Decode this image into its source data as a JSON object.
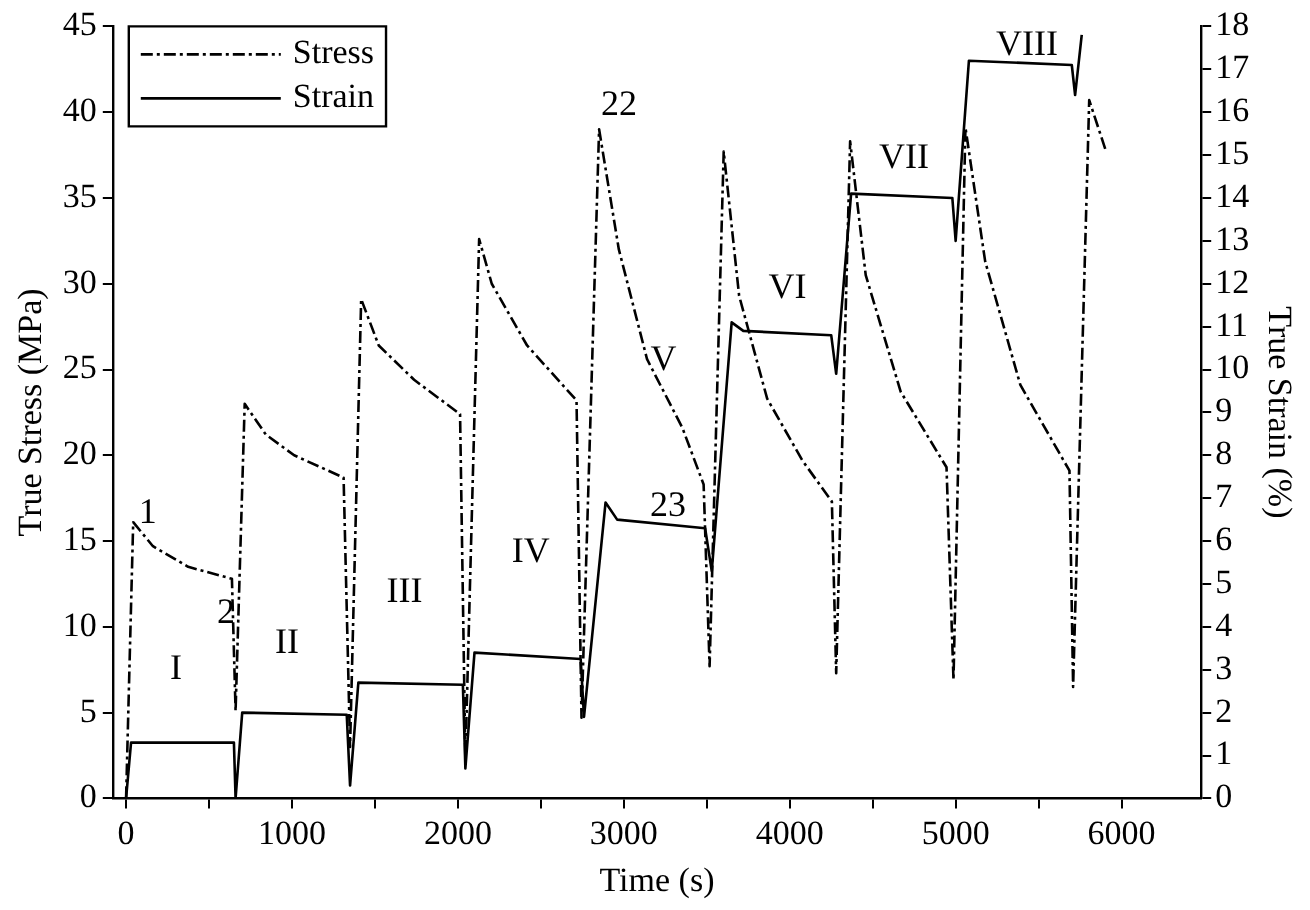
{
  "chart_data": {
    "type": "line",
    "xlabel": "Time (s)",
    "ylabel": "True Stress (MPa)",
    "y2label": "True Strain (%)",
    "xlim": [
      -80,
      6480
    ],
    "xticks": [
      0,
      {
        "value": 500,
        "label": null
      },
      1000,
      {
        "value": 1500,
        "label": null
      },
      2000,
      {
        "value": 2500,
        "label": null
      },
      3000,
      {
        "value": 3500,
        "label": null
      },
      4000,
      {
        "value": 4500,
        "label": null
      },
      5000,
      {
        "value": 5500,
        "label": null
      },
      6000
    ],
    "ylim": [
      0,
      45
    ],
    "yticks": [
      0,
      5,
      10,
      15,
      20,
      25,
      30,
      35,
      40,
      45
    ],
    "y2lim": [
      0,
      18
    ],
    "y2ticks": [
      0,
      1,
      2,
      3,
      4,
      5,
      6,
      7,
      8,
      9,
      10,
      11,
      12,
      13,
      14,
      15,
      16,
      17,
      18
    ],
    "grid": false,
    "legend": "top left",
    "marker": "none",
    "series": [
      {
        "name": "Stress",
        "color": "#000000",
        "line_style": "dashed",
        "x": [
          0,
          43,
          162,
          374,
          638,
          660,
          715,
          843,
          1013,
          1311,
          1350,
          1417,
          1523,
          1736,
          2013,
          2045,
          2128,
          2204,
          2417,
          2715,
          2745,
          2851,
          2970,
          3140,
          3353,
          3481,
          3517,
          3602,
          3695,
          3864,
          4076,
          4254,
          4280,
          4364,
          4458,
          4669,
          4945,
          4987,
          5059,
          5178,
          5390,
          5686,
          5708,
          5805,
          5907
        ],
        "values": [
          0,
          16.1,
          14.7,
          13.5,
          12.8,
          5.1,
          23,
          21.2,
          20,
          18.7,
          3,
          29.1,
          26.4,
          24.4,
          22.4,
          2.3,
          32.6,
          30,
          26.4,
          23.2,
          4.7,
          39,
          32,
          25.6,
          21.6,
          18.3,
          7.7,
          37.7,
          29.3,
          23.3,
          19.7,
          17.3,
          7.3,
          38.3,
          30.5,
          23.7,
          19.3,
          6.9,
          39.1,
          31.3,
          24.1,
          19.1,
          6.5,
          40.7,
          37.7
        ]
      },
      {
        "name": "Strain",
        "color": "#000000",
        "line_style": "solid",
        "axis": "y2",
        "x": [
          0,
          30,
          650,
          660,
          700,
          1330,
          1350,
          1400,
          2030,
          2045,
          2100,
          2740,
          2760,
          2890,
          2960,
          3490,
          3530,
          3650,
          3720,
          4250,
          4280,
          4370,
          4980,
          5000,
          5080,
          5700,
          5720,
          5760
        ],
        "values": [
          0,
          1.3,
          1.3,
          0,
          2,
          1.95,
          0.3,
          2.7,
          2.65,
          0.7,
          3.4,
          3.25,
          1.9,
          6.9,
          6.5,
          6.3,
          5.3,
          11.1,
          10.9,
          10.8,
          9.9,
          14.1,
          14,
          13,
          17.2,
          17.1,
          16.4,
          17.8
        ]
      }
    ],
    "annotations": [
      "1",
      "2",
      "22",
      "23",
      "I",
      "II",
      "III",
      "IV",
      "V",
      "VI",
      "VII",
      "VIII"
    ]
  }
}
